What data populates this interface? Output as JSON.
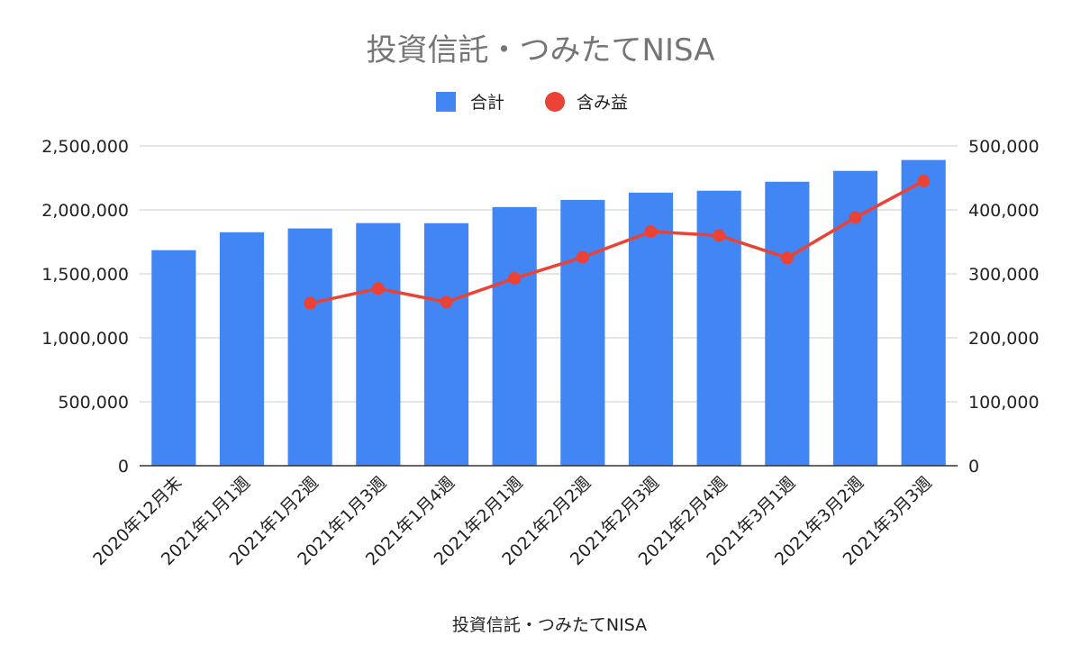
{
  "chart_data": {
    "type": "bar",
    "title": "投資信託・つみたてNISA",
    "xlabel": "投資信託・つみたてNISA",
    "ylabel": "",
    "categories": [
      "2020年12月末",
      "2021年1月1週",
      "2021年1月2週",
      "2021年1月3週",
      "2021年1月4週",
      "2021年2月1週",
      "2021年2月2週",
      "2021年2月3週",
      "2021年2月4週",
      "2021年3月1週",
      "2021年3月2週",
      "2021年3月3週"
    ],
    "ylim": [
      0,
      2500000
    ],
    "y2lim": [
      0,
      500000
    ],
    "yticks": [
      "0",
      "500,000",
      "1,000,000",
      "1,500,000",
      "2,000,000",
      "2,500,000"
    ],
    "y2ticks": [
      "0",
      "100,000",
      "200,000",
      "300,000",
      "400,000",
      "500,000"
    ],
    "grid": true,
    "legend_position": "top",
    "series": [
      {
        "name": "合計",
        "type": "bar",
        "axis": "left",
        "color": "#4285f4",
        "values": [
          1685000,
          1825000,
          1855000,
          1897000,
          1896000,
          2022000,
          2078000,
          2135000,
          2150000,
          2220000,
          2305000,
          2390000
        ]
      },
      {
        "name": "含み益",
        "type": "line",
        "axis": "right",
        "color": "#ea4335",
        "values": [
          null,
          null,
          254000,
          277000,
          256000,
          293000,
          326000,
          366000,
          360000,
          325000,
          388000,
          445000
        ]
      }
    ]
  }
}
